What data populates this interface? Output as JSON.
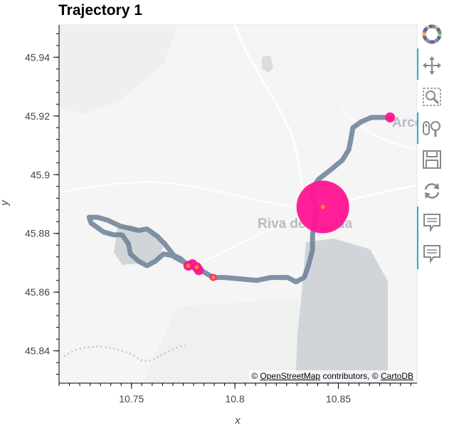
{
  "title": "Trajectory 1",
  "attribution": {
    "prefix": "© ",
    "osm_link": "OpenStreetMap",
    "middle": " contributors, © ",
    "carto_link": "CartoDB"
  },
  "map_labels": {
    "town": "Riva del Garda",
    "town_right": "Arco"
  },
  "toolbar": {
    "tools": [
      {
        "name": "bokeh-logo",
        "active": false
      },
      {
        "name": "pan-tool",
        "active": true
      },
      {
        "name": "box-zoom-tool",
        "active": false
      },
      {
        "name": "wheel-zoom-tool",
        "active": true
      },
      {
        "name": "save-tool",
        "active": false
      },
      {
        "name": "reset-tool",
        "active": false
      },
      {
        "name": "hover-tool-1",
        "active": true
      },
      {
        "name": "hover-tool-2",
        "active": true
      }
    ]
  },
  "chart_data": {
    "type": "scatter",
    "title": "Trajectory 1",
    "xlabel": "x",
    "ylabel": "y",
    "xlim": [
      10.715,
      10.888
    ],
    "ylim": [
      45.829,
      45.951
    ],
    "x_ticks": [
      {
        "value": 10.75,
        "label": "10.75"
      },
      {
        "value": 10.8,
        "label": "10.8"
      },
      {
        "value": 10.85,
        "label": "10.85"
      }
    ],
    "y_ticks": [
      {
        "value": 45.84,
        "label": "45.84"
      },
      {
        "value": 45.86,
        "label": "45.86"
      },
      {
        "value": 45.88,
        "label": "45.88"
      },
      {
        "value": 45.9,
        "label": "45.9"
      },
      {
        "value": 45.92,
        "label": "45.92"
      },
      {
        "value": 45.94,
        "label": "45.94"
      }
    ],
    "grid": false,
    "series": [
      {
        "kind": "trajectory",
        "color": "#6b7f95",
        "points": [
          [
            10.875,
            45.9195
          ],
          [
            10.866,
            45.9195
          ],
          [
            10.861,
            45.918
          ],
          [
            10.857,
            45.916
          ],
          [
            10.856,
            45.912
          ],
          [
            10.855,
            45.9085
          ],
          [
            10.852,
            45.905
          ],
          [
            10.846,
            45.9015
          ],
          [
            10.8405,
            45.8985
          ],
          [
            10.8375,
            45.8955
          ],
          [
            10.8375,
            45.8915
          ],
          [
            10.8395,
            45.8885
          ],
          [
            10.8385,
            45.8845
          ],
          [
            10.8375,
            45.8795
          ],
          [
            10.8375,
            45.8745
          ],
          [
            10.8355,
            45.869
          ],
          [
            10.8335,
            45.865
          ],
          [
            10.8295,
            45.8635
          ],
          [
            10.8255,
            45.865
          ],
          [
            10.8175,
            45.865
          ],
          [
            10.8105,
            45.864
          ],
          [
            10.8025,
            45.8645
          ],
          [
            10.7945,
            45.865
          ],
          [
            10.7895,
            45.865
          ],
          [
            10.7835,
            45.8675
          ],
          [
            10.7775,
            45.869
          ],
          [
            10.7735,
            45.8715
          ],
          [
            10.7705,
            45.8725
          ],
          [
            10.766,
            45.8765
          ],
          [
            10.7625,
            45.879
          ],
          [
            10.7575,
            45.8815
          ],
          [
            10.7535,
            45.881
          ],
          [
            10.7445,
            45.8825
          ],
          [
            10.7385,
            45.8845
          ],
          [
            10.7335,
            45.8855
          ],
          [
            10.7295,
            45.8855
          ],
          [
            10.7305,
            45.8835
          ],
          [
            10.7365,
            45.8805
          ],
          [
            10.7415,
            45.8795
          ],
          [
            10.7455,
            45.8795
          ],
          [
            10.7485,
            45.8765
          ],
          [
            10.7495,
            45.873
          ],
          [
            10.7535,
            45.8705
          ],
          [
            10.7575,
            45.869
          ],
          [
            10.7615,
            45.8705
          ],
          [
            10.7655,
            45.873
          ],
          [
            10.7695,
            45.8725
          ],
          [
            10.7745,
            45.8705
          ]
        ]
      },
      {
        "kind": "stops",
        "color": "#ff1493",
        "points": [
          {
            "x": 10.875,
            "y": 45.9195,
            "size": "small"
          },
          {
            "x": 10.8425,
            "y": 45.889,
            "size": "large"
          },
          {
            "x": 10.7775,
            "y": 45.869,
            "size": "small"
          },
          {
            "x": 10.7795,
            "y": 45.8695,
            "size": "small"
          },
          {
            "x": 10.7815,
            "y": 45.8685,
            "size": "small"
          },
          {
            "x": 10.7825,
            "y": 45.8675,
            "size": "small"
          },
          {
            "x": 10.7895,
            "y": 45.865,
            "size": "tiny"
          }
        ]
      },
      {
        "kind": "stop-centers",
        "color": "#ff8c1a",
        "points": [
          [
            10.8425,
            45.889
          ],
          [
            10.7775,
            45.869
          ],
          [
            10.7815,
            45.8685
          ],
          [
            10.7895,
            45.865
          ]
        ]
      }
    ]
  }
}
